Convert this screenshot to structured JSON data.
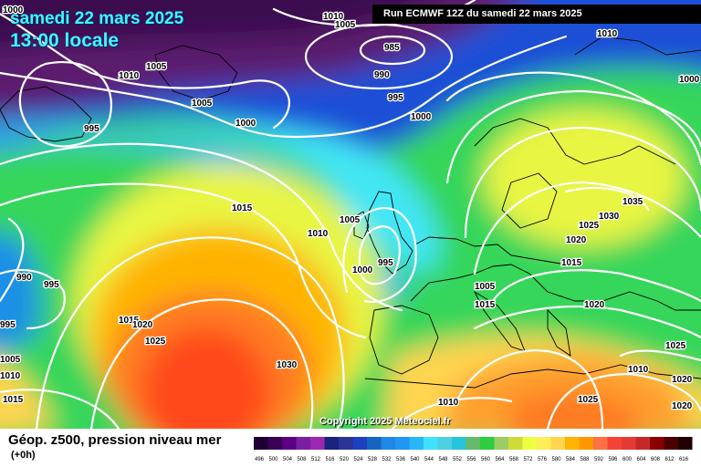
{
  "header": {
    "date": "samedi 22 mars 2025",
    "time": "13:00 locale",
    "run": "Run ECMWF 12Z du samedi 22 mars 2025"
  },
  "footer": {
    "copyright": "Copyright 2025 Meteociel.fr",
    "title": "Géop. z500, pression niveau mer",
    "subtitle": "(+0h)"
  },
  "colorbar": {
    "labels": [
      "496",
      "500",
      "504",
      "508",
      "512",
      "516",
      "520",
      "524",
      "528",
      "532",
      "536",
      "540",
      "544",
      "548",
      "552",
      "556",
      "560",
      "564",
      "568",
      "572",
      "576",
      "580",
      "584",
      "588",
      "592",
      "596",
      "600",
      "604",
      "608",
      "612",
      "616"
    ],
    "colors": [
      "#1e0030",
      "#3a0058",
      "#5a0080",
      "#7b1fa2",
      "#9c27b0",
      "#1a237e",
      "#283593",
      "#1e40c0",
      "#1565c0",
      "#1e88e5",
      "#2196f3",
      "#29b6f6",
      "#40e0ff",
      "#4dd0e1",
      "#26c6da",
      "#66bb6a",
      "#2ecc40",
      "#9ccc65",
      "#cddc39",
      "#eeff41",
      "#ffee58",
      "#ffd54f",
      "#ffb300",
      "#ff9800",
      "#ff7043",
      "#f44336",
      "#e53935",
      "#c62828",
      "#8b0000",
      "#4a0000",
      "#200000"
    ]
  },
  "map": {
    "colors": {
      "purple": "#5b1f6e",
      "blue": "#1d4fd6",
      "cyan": "#42e6f5",
      "green": "#36d65a",
      "yellow": "#e8f542",
      "orange": "#ff9f2e",
      "red": "#ff4a1a"
    },
    "isobar_labels": [
      "1010",
      "1005",
      "985",
      "1010",
      "1000",
      "990",
      "995",
      "1005",
      "1010",
      "995",
      "1005",
      "1000",
      "1000",
      "1015",
      "1005",
      "1010",
      "1000",
      "995",
      "1035",
      "1030",
      "1025",
      "1020",
      "1015",
      "1020",
      "1005",
      "1015",
      "990",
      "995",
      "995",
      "1015",
      "1020",
      "1025",
      "1030",
      "1005",
      "1010",
      "1015",
      "1025",
      "1020",
      "1010",
      "1025",
      "1020",
      "1010",
      "1000"
    ]
  }
}
